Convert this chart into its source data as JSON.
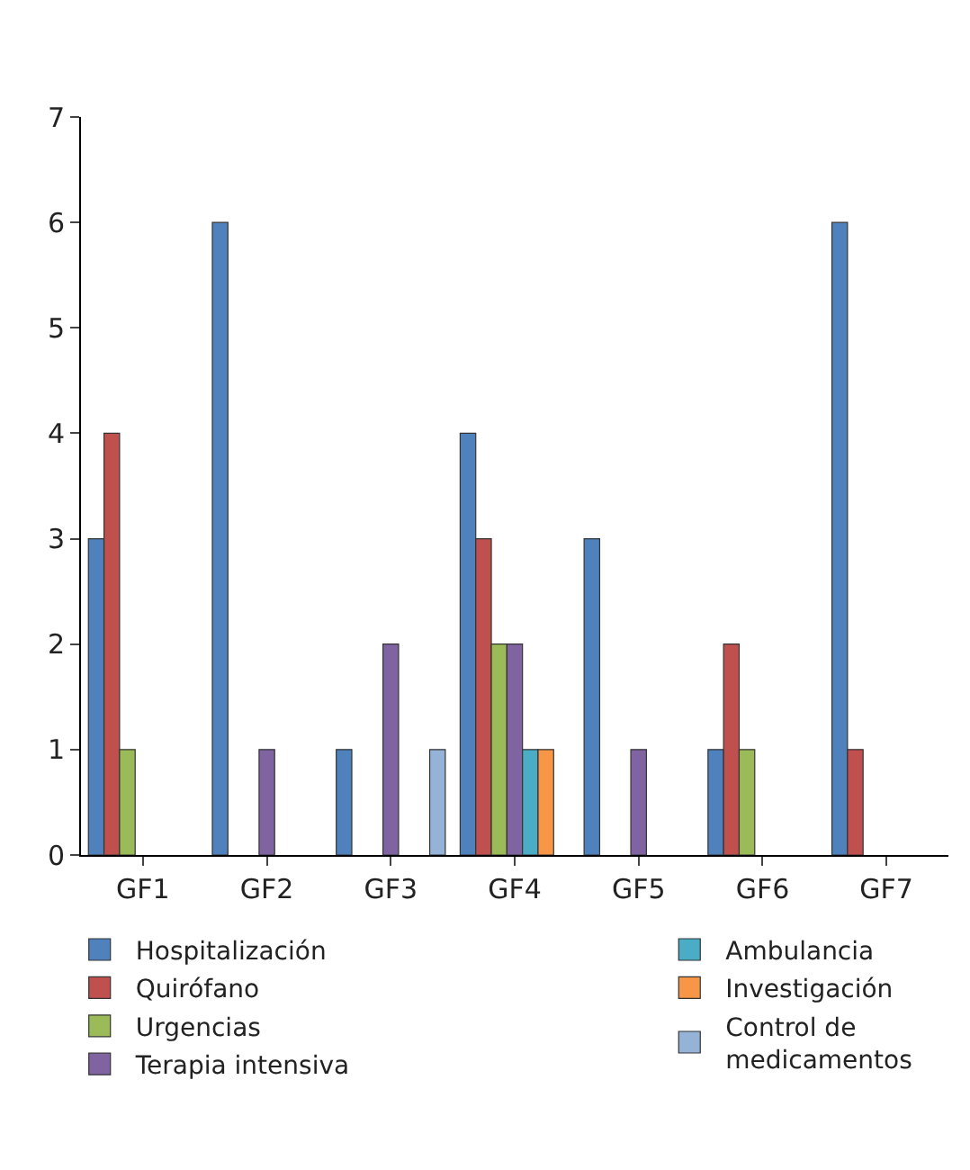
{
  "chart_data": {
    "type": "bar",
    "categories": [
      "GF1",
      "GF2",
      "GF3",
      "GF4",
      "GF5",
      "GF6",
      "GF7"
    ],
    "series": [
      {
        "name": "Hospitalización",
        "color": "#4f81bd",
        "values": [
          3,
          6,
          1,
          4,
          3,
          1,
          6
        ]
      },
      {
        "name": "Quirófano",
        "color": "#c0504d",
        "values": [
          4,
          null,
          null,
          3,
          null,
          2,
          1
        ]
      },
      {
        "name": "Urgencias",
        "color": "#9bbb59",
        "values": [
          1,
          null,
          null,
          2,
          null,
          1,
          null
        ]
      },
      {
        "name": "Terapia intensiva",
        "color": "#8064a2",
        "values": [
          null,
          1,
          2,
          2,
          1,
          null,
          null
        ]
      },
      {
        "name": "Ambulancia",
        "color": "#4bacc6",
        "values": [
          null,
          null,
          null,
          1,
          null,
          null,
          null
        ]
      },
      {
        "name": "Investigación",
        "color": "#f79646",
        "values": [
          null,
          null,
          null,
          1,
          null,
          null,
          null
        ]
      },
      {
        "name": "Control de medicamentos",
        "color": "#95b3d7",
        "values": [
          null,
          null,
          1,
          null,
          null,
          null,
          null
        ]
      }
    ],
    "ylim": [
      0,
      7
    ],
    "yticks": [
      0,
      1,
      2,
      3,
      4,
      5,
      6,
      7
    ],
    "legend": "bottom"
  }
}
